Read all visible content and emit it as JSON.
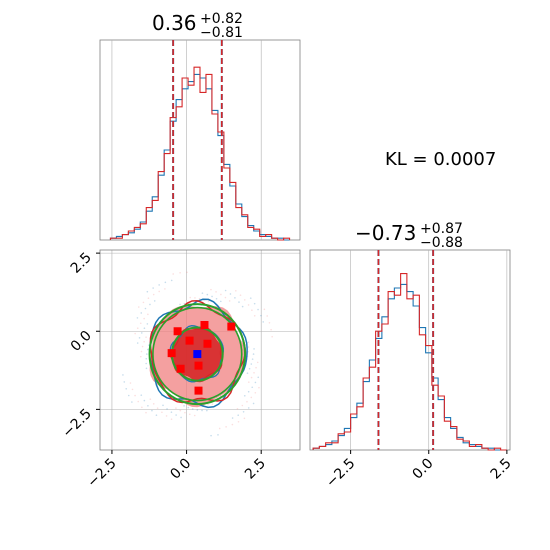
{
  "colors": {
    "red": "#d62728",
    "blue": "#1f77b4",
    "green": "#2ca02c",
    "grid": "#b0b0b0",
    "light_red": "#f08080",
    "dark_red": "#d62728",
    "marker_red": "#ff0000",
    "marker_blue": "#0000ff"
  },
  "chart_data": [
    {
      "type": "histogram",
      "panel": "marginal-x",
      "title": {
        "value": "0.36",
        "upper": "+0.82",
        "lower": "−0.81"
      },
      "xlim": [
        -2.9,
        3.8
      ],
      "quantiles": [
        -0.45,
        0.36,
        1.18
      ],
      "bin_centers": [
        -2.45,
        -2.25,
        -2.05,
        -1.85,
        -1.65,
        -1.45,
        -1.25,
        -1.05,
        -0.85,
        -0.65,
        -0.45,
        -0.25,
        -0.05,
        0.15,
        0.35,
        0.55,
        0.75,
        0.95,
        1.15,
        1.35,
        1.55,
        1.75,
        1.95,
        2.15,
        2.35,
        2.55,
        2.75,
        2.95,
        3.15,
        3.35
      ],
      "series": [
        {
          "color": "blue",
          "values": [
            1,
            2,
            3,
            4,
            6,
            10,
            16,
            24,
            36,
            50,
            66,
            78,
            84,
            88,
            92,
            90,
            84,
            72,
            58,
            42,
            30,
            20,
            13,
            8,
            5,
            3,
            2,
            1,
            1,
            0
          ]
        },
        {
          "color": "red",
          "values": [
            1,
            1,
            3,
            5,
            7,
            9,
            18,
            22,
            38,
            48,
            68,
            74,
            90,
            86,
            96,
            82,
            92,
            70,
            60,
            40,
            32,
            18,
            14,
            7,
            6,
            2,
            3,
            1,
            0,
            1
          ]
        }
      ],
      "annotation": "KL = 0.0007"
    },
    {
      "type": "contour",
      "panel": "joint",
      "xlim": [
        -2.9,
        3.8
      ],
      "ylim": [
        -3.8,
        2.6
      ],
      "xticks": [
        "−2.5",
        "0.0",
        "2.5"
      ],
      "yticks": [
        "2.5",
        "0.0",
        "−2.5"
      ],
      "center": [
        0.36,
        -0.73
      ],
      "contour_sigmas": [
        0.85,
        1.6
      ],
      "markers_red": [
        [
          -0.3,
          0.0
        ],
        [
          0.6,
          0.2
        ],
        [
          1.5,
          0.15
        ],
        [
          -0.5,
          -0.7
        ],
        [
          0.7,
          -0.4
        ],
        [
          -0.2,
          -1.2
        ],
        [
          0.4,
          -1.1
        ],
        [
          0.4,
          -1.9
        ],
        [
          0.1,
          -0.3
        ]
      ],
      "marker_blue": [
        0.36,
        -0.73
      ]
    },
    {
      "type": "histogram",
      "panel": "marginal-y",
      "title": {
        "value": "−0.73",
        "upper": "+0.87",
        "lower": "−0.88"
      },
      "xlim": [
        -3.8,
        2.6
      ],
      "xticks": [
        "−2.5",
        "0.0",
        "2.5"
      ],
      "quantiles": [
        -1.61,
        -0.73,
        0.14
      ],
      "bin_centers": [
        -3.6,
        -3.4,
        -3.2,
        -3.0,
        -2.8,
        -2.6,
        -2.4,
        -2.2,
        -2.0,
        -1.8,
        -1.6,
        -1.4,
        -1.2,
        -1.0,
        -0.8,
        -0.6,
        -0.4,
        -0.2,
        0.0,
        0.2,
        0.4,
        0.6,
        0.8,
        1.0,
        1.2,
        1.4,
        1.6,
        1.8,
        2.0,
        2.2,
        2.4
      ],
      "series": [
        {
          "color": "blue",
          "values": [
            1,
            2,
            3,
            5,
            8,
            12,
            18,
            26,
            38,
            50,
            62,
            74,
            84,
            90,
            92,
            88,
            80,
            68,
            54,
            40,
            28,
            18,
            12,
            7,
            4,
            3,
            2,
            1,
            1,
            0,
            0
          ]
        },
        {
          "color": "red",
          "values": [
            1,
            2,
            4,
            4,
            9,
            10,
            20,
            24,
            40,
            46,
            66,
            70,
            88,
            86,
            98,
            84,
            86,
            64,
            58,
            36,
            30,
            16,
            13,
            6,
            5,
            2,
            3,
            1,
            0,
            1,
            0
          ]
        }
      ]
    }
  ]
}
